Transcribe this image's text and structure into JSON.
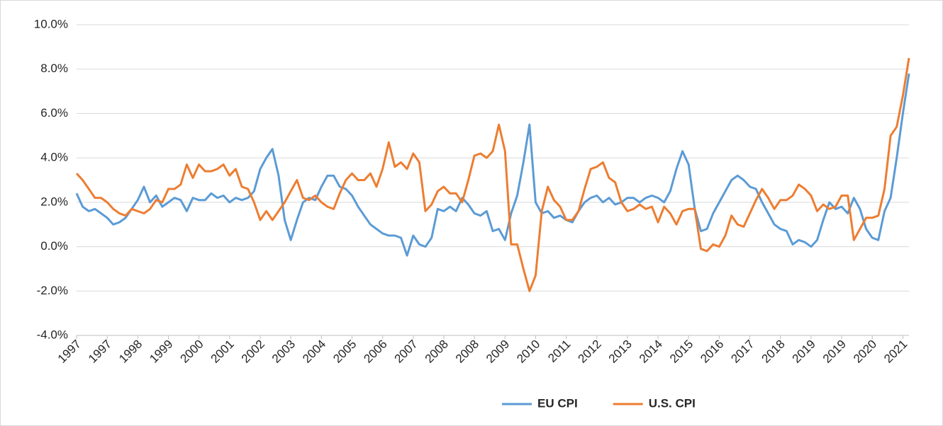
{
  "chart_data": {
    "type": "line",
    "categories": [
      "1997",
      null,
      null,
      null,
      null,
      "1997",
      null,
      null,
      null,
      null,
      "1998",
      null,
      null,
      null,
      null,
      "1999",
      null,
      null,
      null,
      null,
      "2000",
      null,
      null,
      null,
      null,
      "2001",
      null,
      null,
      null,
      null,
      "2002",
      null,
      null,
      null,
      null,
      "2003",
      null,
      null,
      null,
      null,
      "2004",
      null,
      null,
      null,
      null,
      "2005",
      null,
      null,
      null,
      null,
      "2006",
      null,
      null,
      null,
      null,
      "2007",
      null,
      null,
      null,
      null,
      "2008",
      null,
      null,
      null,
      null,
      "2008",
      null,
      null,
      null,
      null,
      "2009",
      null,
      null,
      null,
      null,
      "2010",
      null,
      null,
      null,
      null,
      "2011",
      null,
      null,
      null,
      null,
      "2012",
      null,
      null,
      null,
      null,
      "2013",
      null,
      null,
      null,
      null,
      "2014",
      null,
      null,
      null,
      null,
      "2015",
      null,
      null,
      null,
      null,
      "2016",
      null,
      null,
      null,
      null,
      "2017",
      null,
      null,
      null,
      null,
      "2018",
      null,
      null,
      null,
      null,
      "2019",
      null,
      null,
      null,
      null,
      "2019",
      null,
      null,
      null,
      null,
      "2020",
      null,
      null,
      null,
      null,
      "2021",
      null
    ],
    "series": [
      {
        "name": "EU CPI",
        "color": "#5b9bd5",
        "values": [
          2.4,
          1.8,
          1.6,
          1.7,
          1.5,
          1.3,
          1.0,
          1.1,
          1.3,
          1.7,
          2.1,
          2.7,
          2.0,
          2.3,
          1.8,
          2.0,
          2.2,
          2.1,
          1.6,
          2.2,
          2.1,
          2.1,
          2.4,
          2.2,
          2.3,
          2.0,
          2.2,
          2.1,
          2.2,
          2.5,
          3.5,
          4.0,
          4.4,
          3.2,
          1.2,
          0.3,
          1.2,
          2.0,
          2.2,
          2.1,
          2.7,
          3.2,
          3.2,
          2.7,
          2.6,
          2.3,
          1.8,
          1.4,
          1.0,
          0.8,
          0.6,
          0.5,
          0.5,
          0.4,
          -0.4,
          0.5,
          0.1,
          0.0,
          0.4,
          1.7,
          1.6,
          1.8,
          1.6,
          2.2,
          1.9,
          1.5,
          1.4,
          1.6,
          0.7,
          0.8,
          0.3,
          1.5,
          2.3,
          3.8,
          5.5,
          2.0,
          1.5,
          1.6,
          1.3,
          1.4,
          1.2,
          1.1,
          1.6,
          2.0,
          2.2,
          2.3,
          2.0,
          2.2,
          1.9,
          2.0,
          2.2,
          2.2,
          2.0,
          2.2,
          2.3,
          2.2,
          2.0,
          2.5,
          3.5,
          4.3,
          3.7,
          1.7,
          0.7,
          0.8,
          1.5,
          2.0,
          2.5,
          3.0,
          3.2,
          3.0,
          2.7,
          2.6,
          2.0,
          1.5,
          1.0,
          0.8,
          0.7,
          0.1,
          0.3,
          0.2,
          0.0,
          0.3,
          1.2,
          2.0,
          1.7,
          1.8,
          1.5,
          2.2,
          1.7,
          0.8,
          0.4,
          0.3,
          1.6,
          2.2,
          4.0,
          6.0,
          7.8
        ]
      },
      {
        "name": "U.S. CPI",
        "color": "#ed7d31",
        "values": [
          3.3,
          3.0,
          2.6,
          2.2,
          2.2,
          2.0,
          1.7,
          1.5,
          1.4,
          1.7,
          1.6,
          1.5,
          1.7,
          2.1,
          2.0,
          2.6,
          2.6,
          2.8,
          3.7,
          3.1,
          3.7,
          3.4,
          3.4,
          3.5,
          3.7,
          3.2,
          3.5,
          2.7,
          2.6,
          2.0,
          1.2,
          1.6,
          1.2,
          1.6,
          2.0,
          2.5,
          3.0,
          2.2,
          2.1,
          2.3,
          2.0,
          1.8,
          1.7,
          2.4,
          3.0,
          3.3,
          3.0,
          3.0,
          3.3,
          2.7,
          3.5,
          4.7,
          3.6,
          3.8,
          3.5,
          4.2,
          3.8,
          1.6,
          1.9,
          2.5,
          2.7,
          2.4,
          2.4,
          2.0,
          3.0,
          4.1,
          4.2,
          4.0,
          4.3,
          5.5,
          4.3,
          0.1,
          0.1,
          -1.0,
          -2.0,
          -1.3,
          1.6,
          2.7,
          2.1,
          1.8,
          1.2,
          1.2,
          1.6,
          2.6,
          3.5,
          3.6,
          3.8,
          3.1,
          2.9,
          2.0,
          1.6,
          1.7,
          1.9,
          1.7,
          1.8,
          1.1,
          1.8,
          1.5,
          1.0,
          1.6,
          1.7,
          1.7,
          -0.1,
          -0.2,
          0.1,
          0.0,
          0.5,
          1.4,
          1.0,
          0.9,
          1.5,
          2.1,
          2.6,
          2.2,
          1.7,
          2.1,
          2.1,
          2.3,
          2.8,
          2.6,
          2.3,
          1.6,
          1.9,
          1.7,
          1.8,
          2.3,
          2.3,
          0.3,
          0.8,
          1.3,
          1.3,
          1.4,
          2.6,
          5.0,
          5.4,
          6.8,
          8.5
        ]
      }
    ],
    "ylim": [
      -4,
      10
    ],
    "yticks": [
      {
        "value": -4,
        "label": "-4.0%"
      },
      {
        "value": -2,
        "label": "-2.0%"
      },
      {
        "value": 0,
        "label": "0.0%"
      },
      {
        "value": 2,
        "label": "2.0%"
      },
      {
        "value": 4,
        "label": "4.0%"
      },
      {
        "value": 6,
        "label": "6.0%"
      },
      {
        "value": 8,
        "label": "8.0%"
      },
      {
        "value": 10,
        "label": "10.0%"
      }
    ],
    "grid": true,
    "legend": "bottom"
  }
}
